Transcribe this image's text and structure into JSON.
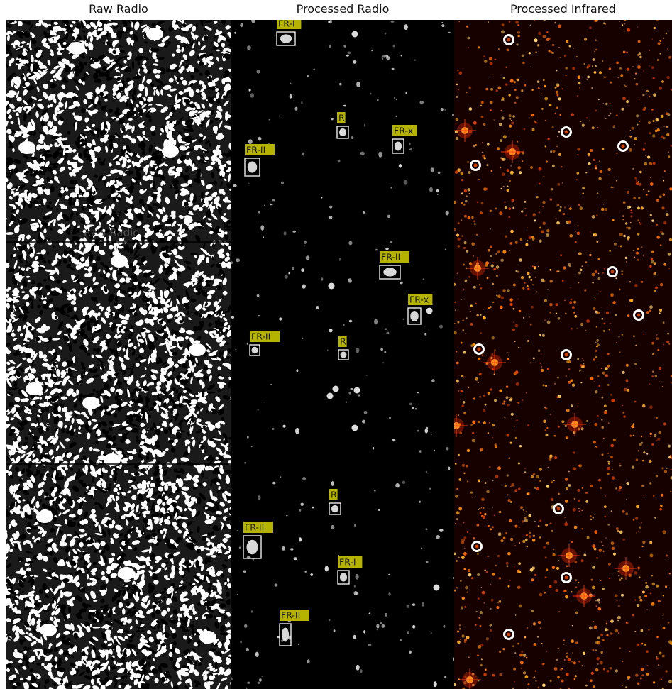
{
  "titles": {
    "raw": "Raw Radio",
    "processed": "Processed Radio",
    "infrared": "Processed Infrared"
  },
  "colors": {
    "label_bg": "#b5b200",
    "box": "#ffffff",
    "infrared_bg": "#110000",
    "infrared_star": "#ff9a10"
  },
  "detections": [
    {
      "label": "FR-I"
    },
    {
      "label": "R"
    },
    {
      "label": "FR-x"
    },
    {
      "label": "FR-II"
    },
    {
      "label": "FR-II"
    },
    {
      "label": "FR-x"
    },
    {
      "label": "FR-II"
    },
    {
      "label": "R"
    },
    {
      "label": "R"
    },
    {
      "label": "FR-II"
    },
    {
      "label": "FR-I"
    },
    {
      "label": "FR-II"
    }
  ],
  "ghost_title": "Raw Radio"
}
